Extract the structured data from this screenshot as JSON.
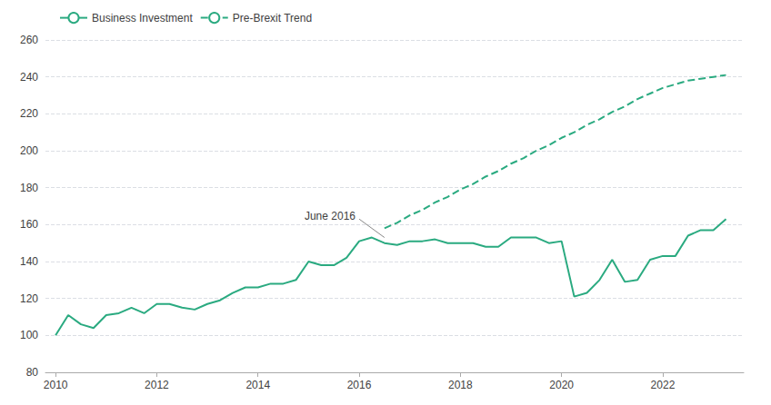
{
  "chart_data": {
    "type": "line",
    "xlim": [
      2009.8,
      2023.6
    ],
    "xticks": [
      2010,
      2012,
      2014,
      2016,
      2018,
      2020,
      2022
    ],
    "ylim": [
      80,
      260
    ],
    "yticks": [
      80,
      100,
      120,
      140,
      160,
      180,
      200,
      220,
      240,
      260
    ],
    "grid": true,
    "legend": "upper left",
    "series": [
      {
        "name": "Business Investment",
        "color": "#2aaa80",
        "line_style": "solid",
        "x": [
          2010.0,
          2010.25,
          2010.5,
          2010.75,
          2011.0,
          2011.25,
          2011.5,
          2011.75,
          2012.0,
          2012.25,
          2012.5,
          2012.75,
          2013.0,
          2013.25,
          2013.5,
          2013.75,
          2014.0,
          2014.25,
          2014.5,
          2014.75,
          2015.0,
          2015.25,
          2015.5,
          2015.75,
          2016.0,
          2016.25,
          2016.5,
          2016.75,
          2017.0,
          2017.25,
          2017.5,
          2017.75,
          2018.0,
          2018.25,
          2018.5,
          2018.75,
          2019.0,
          2019.25,
          2019.5,
          2019.75,
          2020.0,
          2020.25,
          2020.5,
          2020.75,
          2021.0,
          2021.25,
          2021.5,
          2021.75,
          2022.0,
          2022.25,
          2022.5,
          2022.75,
          2023.0,
          2023.25
        ],
        "values": [
          100,
          111,
          106,
          104,
          111,
          112,
          115,
          112,
          117,
          117,
          115,
          114,
          117,
          119,
          123,
          126,
          126,
          128,
          128,
          130,
          140,
          138,
          138,
          142,
          151,
          153,
          150,
          149,
          151,
          151,
          152,
          150,
          150,
          150,
          148,
          148,
          153,
          153,
          153,
          150,
          151,
          121,
          123,
          130,
          141,
          129,
          130,
          141,
          143,
          143,
          154,
          157,
          157,
          163
        ]
      },
      {
        "name": "Pre-Brexit Trend",
        "color": "#2aaa80",
        "line_style": "dashed",
        "x": [
          2016.5,
          2016.75,
          2017.0,
          2017.25,
          2017.5,
          2017.75,
          2018.0,
          2018.25,
          2018.5,
          2018.75,
          2019.0,
          2019.25,
          2019.5,
          2019.75,
          2020.0,
          2020.25,
          2020.5,
          2020.75,
          2021.0,
          2021.25,
          2021.5,
          2021.75,
          2022.0,
          2022.25,
          2022.5,
          2022.75,
          2023.0,
          2023.25
        ],
        "values": [
          158,
          161,
          165,
          168,
          172,
          175,
          179,
          182,
          186,
          189,
          193,
          196,
          200,
          203,
          207,
          210,
          214,
          217,
          221,
          224,
          228,
          231,
          234,
          236,
          238,
          239,
          240,
          241
        ]
      }
    ],
    "annotations": [
      {
        "text": "June 2016",
        "xy": [
          2016.5,
          153
        ],
        "text_xy": [
          2016.0,
          163
        ]
      }
    ]
  }
}
